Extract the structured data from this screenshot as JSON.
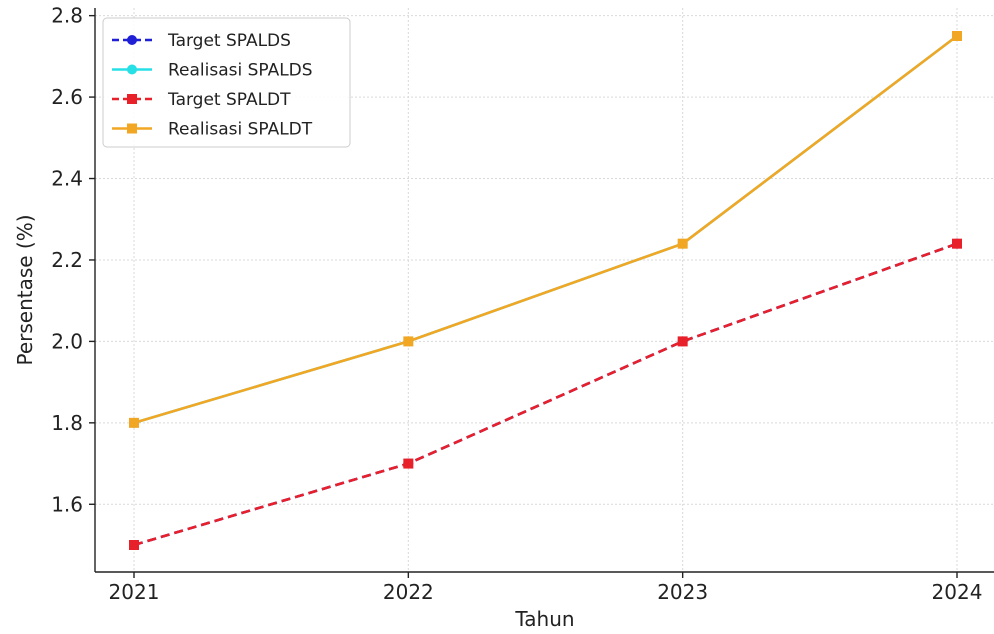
{
  "chart_data": {
    "type": "line",
    "title": "",
    "xlabel": "Tahun",
    "ylabel": "Persentase (%)",
    "categories": [
      "2021",
      "2022",
      "2023",
      "2024"
    ],
    "ylim": [
      1.45,
      2.8
    ],
    "yticks": [
      "1.6",
      "1.8",
      "2.0",
      "2.2",
      "2.4",
      "2.6",
      "2.8"
    ],
    "grid": true,
    "legend_position": "top-left",
    "series": [
      {
        "name": "Target SPALDS",
        "values": [
          1.5,
          1.7,
          2.0,
          2.24
        ],
        "color": "#1f1fd6",
        "dashed": true,
        "marker": "circle"
      },
      {
        "name": "Realisasi SPALDS",
        "values": [
          1.8,
          2.0,
          2.24,
          2.75
        ],
        "color": "#27e0e6",
        "dashed": false,
        "marker": "circle"
      },
      {
        "name": "Target SPALDT",
        "values": [
          1.5,
          1.7,
          2.0,
          2.24
        ],
        "color": "#e8202a",
        "dashed": true,
        "marker": "square"
      },
      {
        "name": "Realisasi SPALDT",
        "values": [
          1.8,
          2.0,
          2.24,
          2.75
        ],
        "color": "#f2a724",
        "dashed": false,
        "marker": "square"
      }
    ]
  }
}
